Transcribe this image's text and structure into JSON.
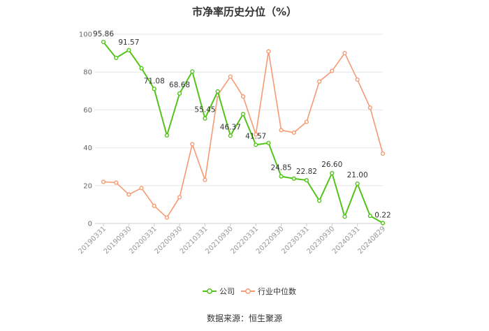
{
  "chart_data": {
    "type": "line",
    "title": "市净率历史分位（%）",
    "source": "数据来源：恒生聚源",
    "ylim": [
      0,
      100
    ],
    "yticks": [
      0,
      20,
      40,
      60,
      80,
      100
    ],
    "x_ticks": [
      "20190331",
      "20190930",
      "20200331",
      "20200930",
      "20210331",
      "20210930",
      "20220331",
      "20220930",
      "20230331",
      "20230930",
      "20240331",
      "20240829"
    ],
    "grid": true,
    "legend_position": "bottom",
    "series": [
      {
        "name": "公司",
        "color": "#52c41a",
        "values": [
          95.86,
          87.5,
          91.57,
          82.0,
          71.08,
          46.5,
          68.68,
          80.3,
          55.45,
          69.8,
          46.37,
          57.8,
          41.57,
          42.5,
          24.85,
          23.7,
          22.82,
          12.0,
          26.6,
          3.6,
          21.0,
          4.0,
          0.22
        ],
        "labels": {
          "0": "95.86",
          "2": "91.57",
          "4": "71.08",
          "6": "68.68",
          "8": "55.45",
          "10": "46.37",
          "12": "41.57",
          "14": "24.85",
          "16": "22.82",
          "18": "26.60",
          "20": "21.00",
          "22": "0.22"
        }
      },
      {
        "name": "行业中位数",
        "color": "#f79a72",
        "values": [
          22.0,
          21.6,
          15.3,
          18.7,
          9.3,
          3.1,
          13.9,
          41.9,
          23.0,
          67.8,
          77.6,
          67.1,
          47.0,
          90.9,
          49.3,
          48.0,
          53.7,
          75.0,
          80.6,
          90.0,
          76.0,
          61.2,
          36.9
        ]
      }
    ]
  }
}
